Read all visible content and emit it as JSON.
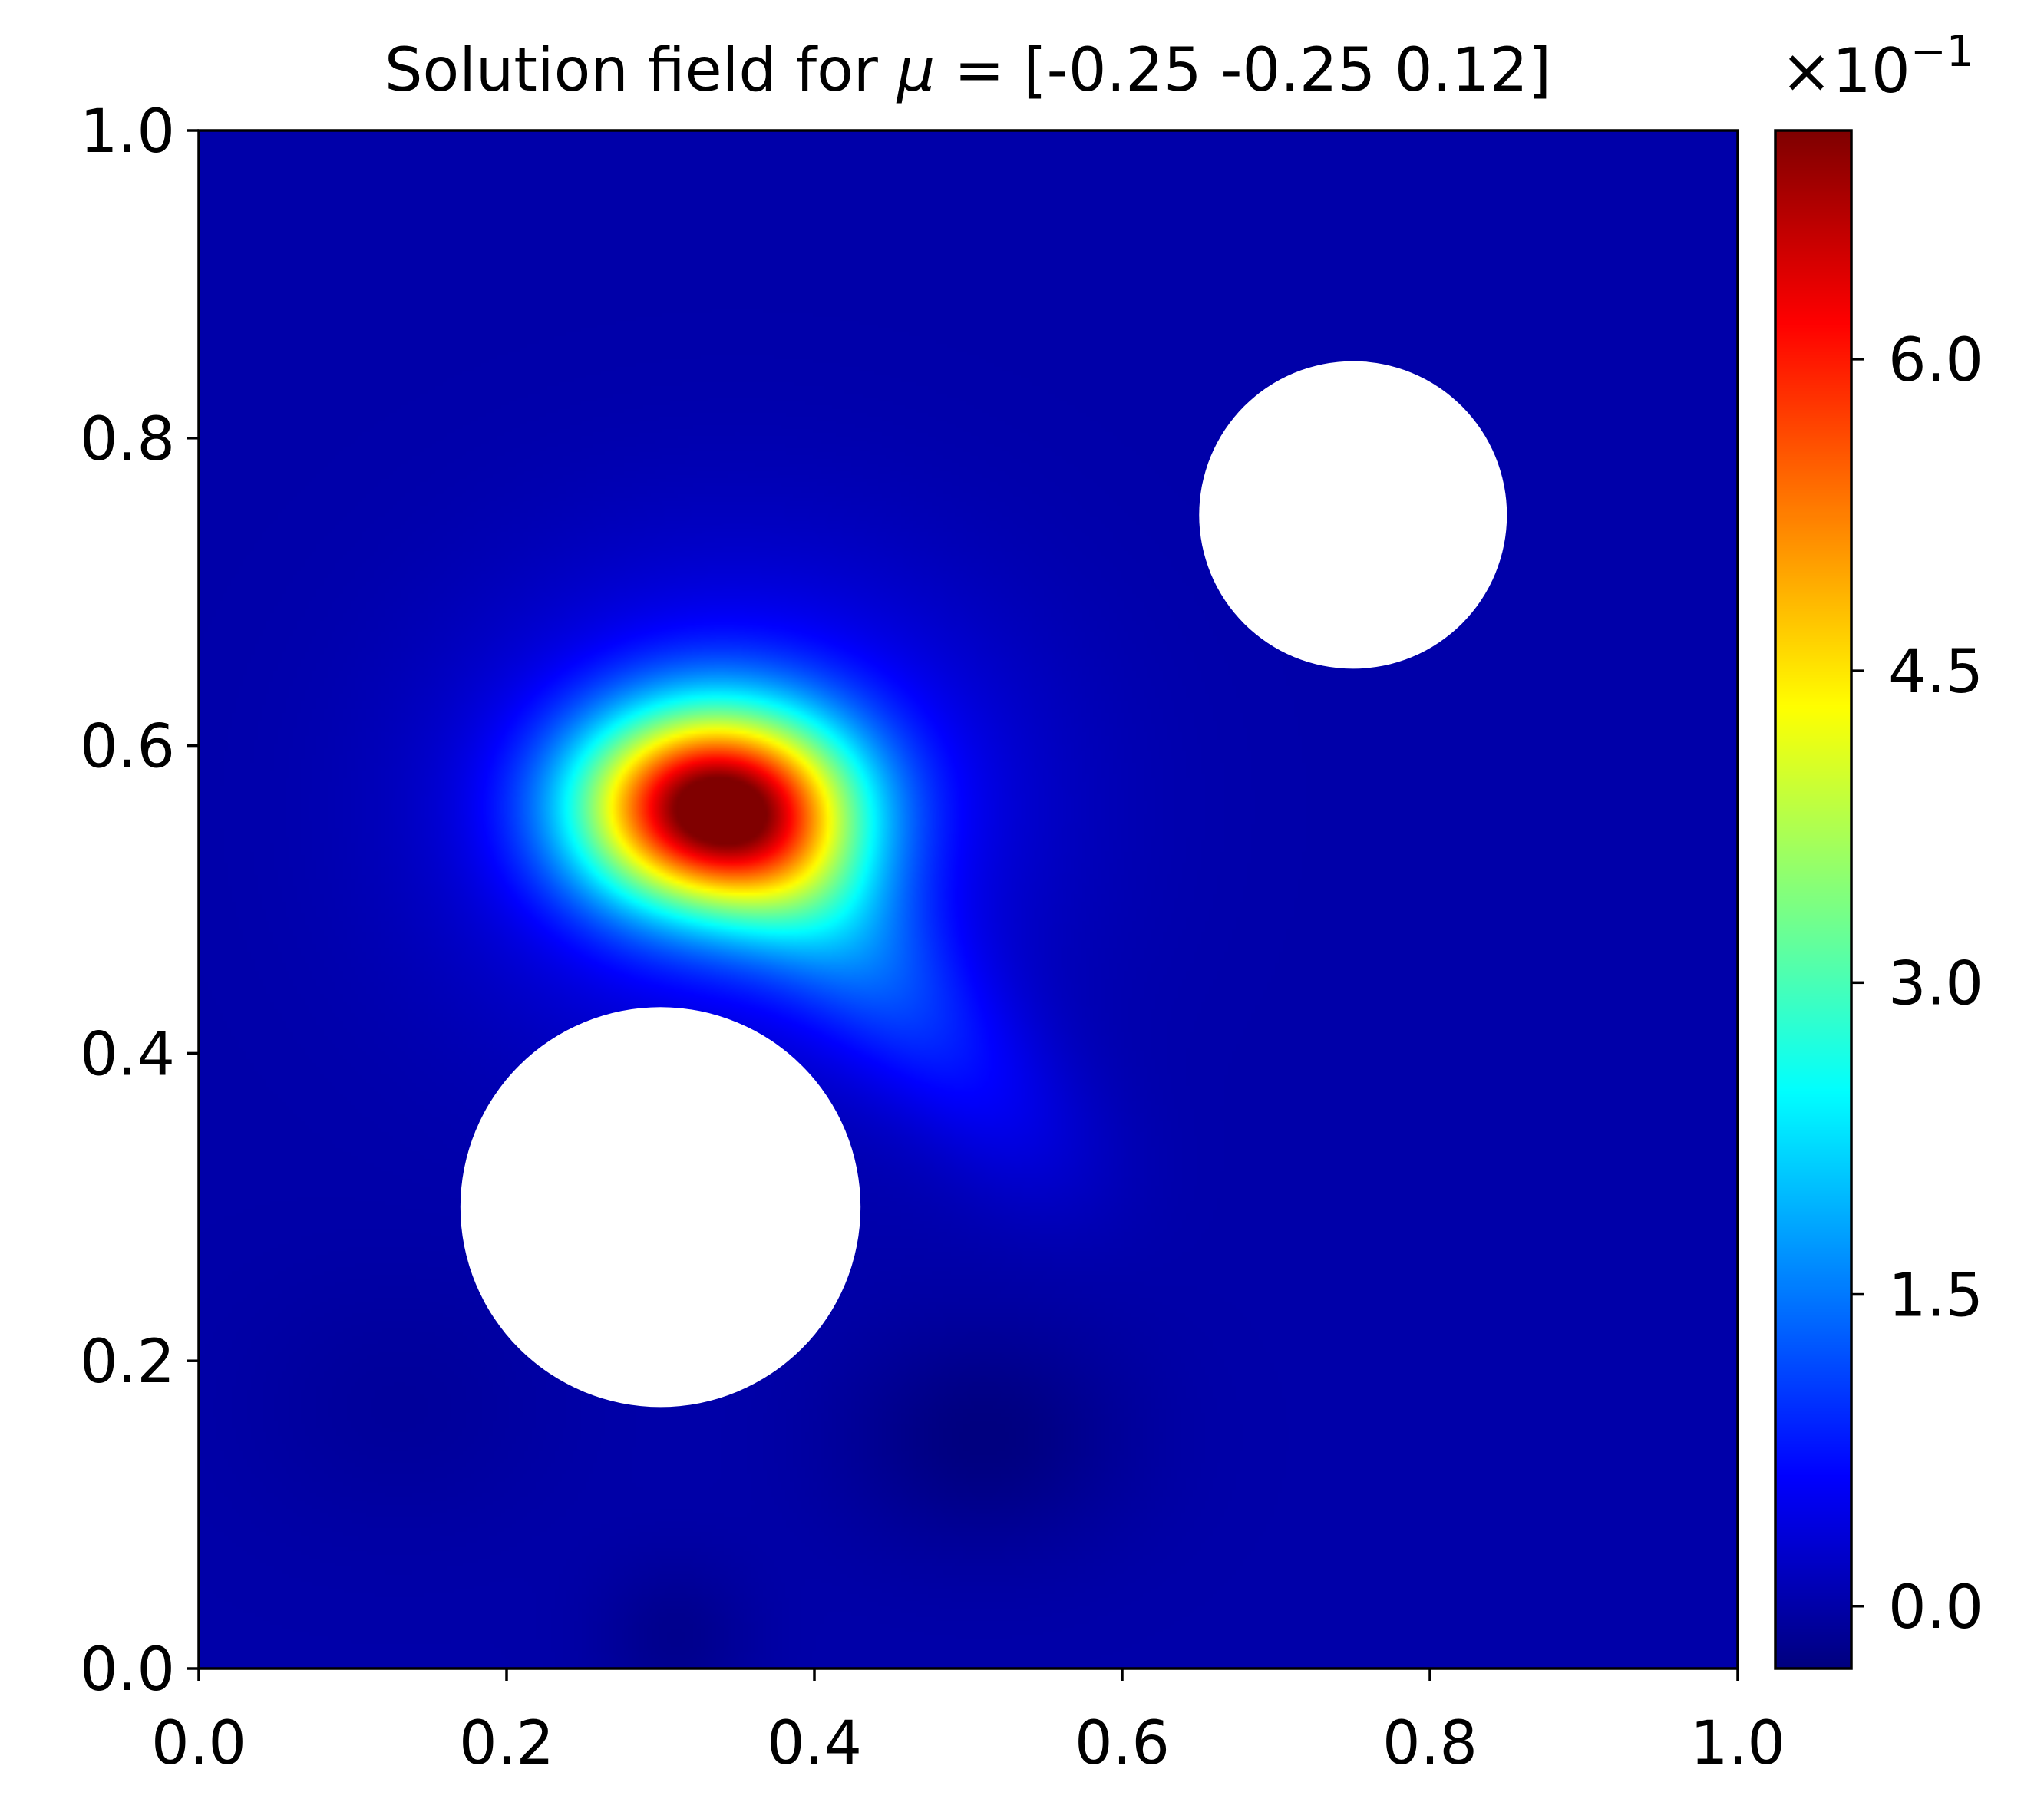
{
  "chart_data": {
    "type": "heatmap",
    "title": "Solution field for μ = [-0.25 -0.25  0.12]",
    "title_parts": {
      "prefix": "Solution field for ",
      "symbol": "μ",
      "suffix": " = [-0.25 -0.25  0.12]"
    },
    "xlabel": "",
    "ylabel": "",
    "xlim": [
      0.0,
      1.0
    ],
    "ylim": [
      0.0,
      1.0
    ],
    "x_ticks": [
      "0.0",
      "0.2",
      "0.4",
      "0.6",
      "0.8",
      "1.0"
    ],
    "y_ticks": [
      "0.0",
      "0.2",
      "0.4",
      "0.6",
      "0.8",
      "1.0"
    ],
    "colormap": "jet",
    "colorbar": {
      "multiplier": {
        "base": "×10",
        "exponent": "−1"
      },
      "scale": 0.1,
      "range": [
        -0.03,
        0.71
      ],
      "ticks": [
        {
          "value": 0.0,
          "label": "0.0"
        },
        {
          "value": 1.5,
          "label": "1.5"
        },
        {
          "value": 3.0,
          "label": "3.0"
        },
        {
          "value": 4.5,
          "label": "4.5"
        },
        {
          "value": 6.0,
          "label": "6.0"
        }
      ]
    },
    "holes": [
      {
        "cx": 0.3,
        "cy": 0.3,
        "r": 0.13
      },
      {
        "cx": 0.75,
        "cy": 0.75,
        "r": 0.1
      }
    ],
    "field_features": [
      {
        "kind": "peak",
        "x": 0.335,
        "y": 0.56,
        "value": 0.7
      },
      {
        "kind": "trough",
        "x": 0.51,
        "y": 0.15,
        "value": -0.03
      },
      {
        "kind": "trough",
        "x": 0.31,
        "y": 0.02,
        "value": -0.02
      }
    ],
    "background_value": 0.0,
    "grid": false,
    "legend": "none"
  }
}
